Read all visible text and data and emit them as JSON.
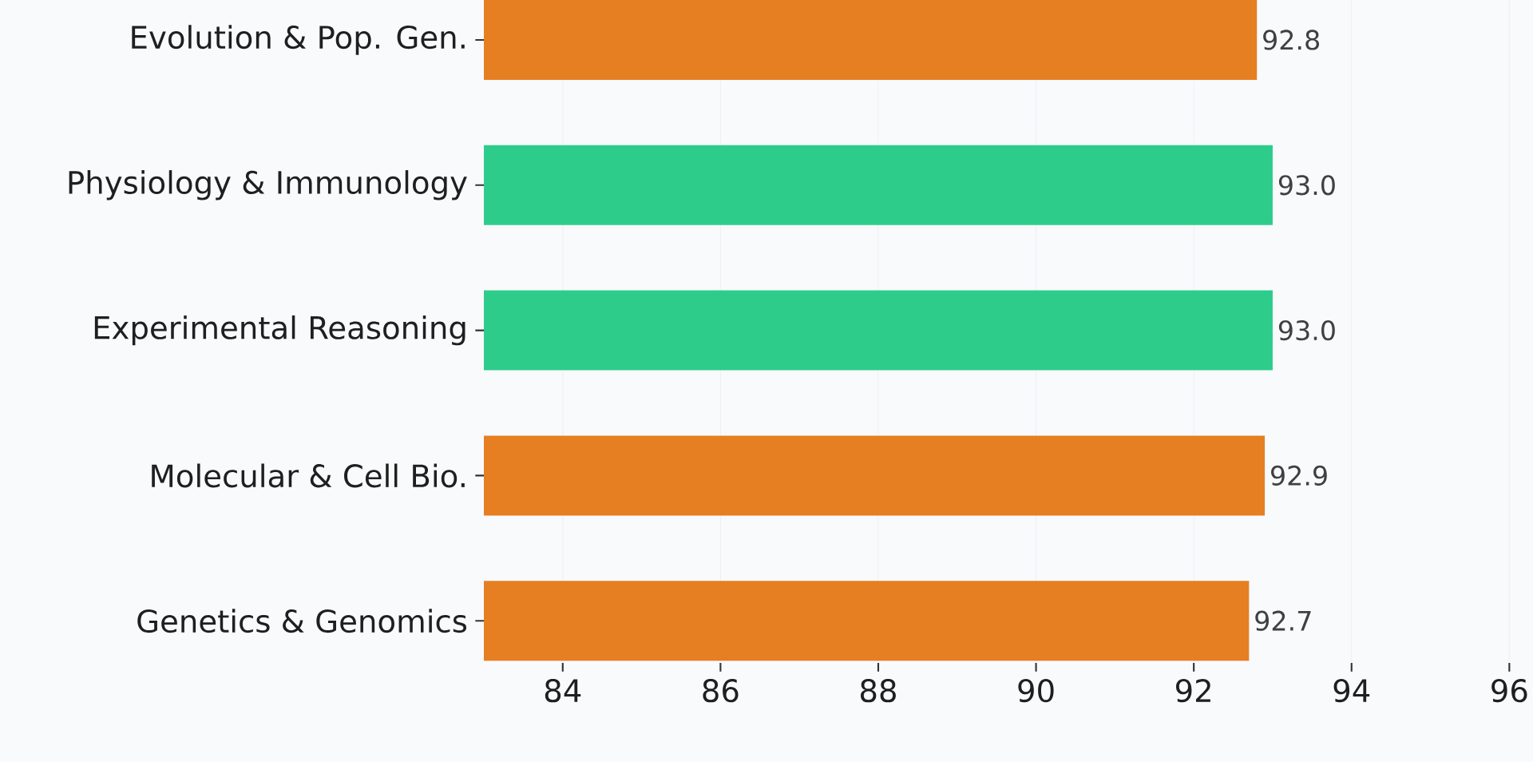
{
  "chart_data": {
    "type": "bar",
    "orientation": "horizontal",
    "categories": [
      "Evolution & Pop. Gen.",
      "Physiology & Immunology",
      "Experimental Reasoning",
      "Molecular & Cell Bio.",
      "Genetics & Genomics"
    ],
    "values": [
      92.8,
      93.0,
      93.0,
      92.9,
      92.7
    ],
    "colors": [
      "#e67e22",
      "#2ecc8b",
      "#2ecc8b",
      "#e67e22",
      "#e67e22"
    ],
    "value_labels": [
      "92.8",
      "93.0",
      "93.0",
      "92.9",
      "92.7"
    ],
    "xlim": [
      83,
      96.3
    ],
    "xticks": [
      84,
      86,
      88,
      90,
      92,
      94,
      96
    ],
    "grid": "x"
  }
}
